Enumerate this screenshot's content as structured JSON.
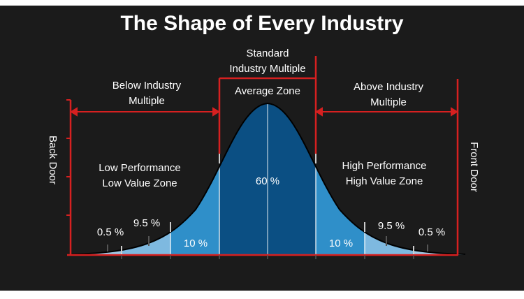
{
  "title": "The Shape of Every Industry",
  "labels": {
    "standard": "Standard\nIndustry Multiple",
    "average_zone": "Average Zone",
    "below": "Below Industry\nMultiple",
    "above": "Above Industry\nMultiple",
    "back_door": "Back Door",
    "front_door": "Front Door",
    "low_zone": "Low Performance\nLow Value Zone",
    "high_zone": "High Performance\nHigh Value Zone"
  },
  "percentages": {
    "center": "60 %",
    "left_inner": "10 %",
    "right_inner": "10 %",
    "left_mid": "9.5 %",
    "right_mid": "9.5 %",
    "left_outer": "0.5 %",
    "right_outer": "0.5 %"
  },
  "colors": {
    "background": "#1b1b1b",
    "curve_dark": "#0b4f83",
    "curve_mid": "#2f8fc9",
    "curve_light": "#6fb3dc",
    "curve_pale": "#9fc9e6",
    "accent_red": "#d62020",
    "text": "#ffffff"
  }
}
